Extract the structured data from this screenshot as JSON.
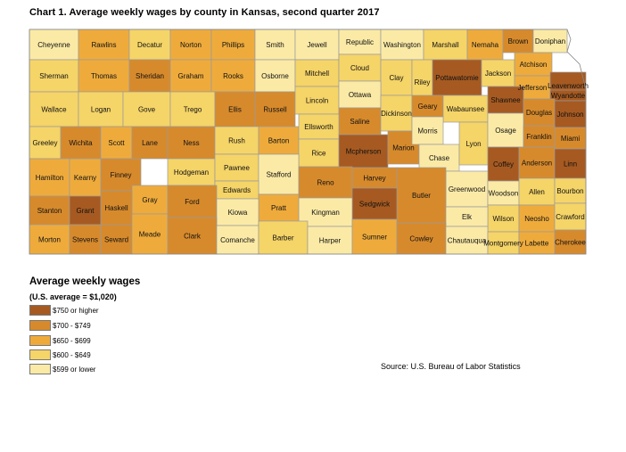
{
  "title": "Chart 1. Average weekly wages by county in Kansas, second quarter 2017",
  "legend": {
    "title": "Average weekly wages",
    "subtitle": "(U.S. average = $1,020)",
    "items": [
      {
        "label": "$750 or higher",
        "color": "#a65a21"
      },
      {
        "label": "$700 - $749",
        "color": "#d78a2c"
      },
      {
        "label": "$650 - $699",
        "color": "#eeab3c"
      },
      {
        "label": "$600 - $649",
        "color": "#f5d468"
      },
      {
        "label": "$599 or lower",
        "color": "#fbeaa6"
      }
    ]
  },
  "source": "Source: U.S. Bureau of Labor Statistics",
  "counties": [
    {
      "name": "Cheyenne",
      "cls": 4
    },
    {
      "name": "Rawlins",
      "cls": 2
    },
    {
      "name": "Decatur",
      "cls": 3
    },
    {
      "name": "Norton",
      "cls": 2
    },
    {
      "name": "Phillips",
      "cls": 2
    },
    {
      "name": "Smith",
      "cls": 4
    },
    {
      "name": "Jewell",
      "cls": 4
    },
    {
      "name": "Republic",
      "cls": 4
    },
    {
      "name": "Washington",
      "cls": 4
    },
    {
      "name": "Marshall",
      "cls": 3
    },
    {
      "name": "Nemaha",
      "cls": 2
    },
    {
      "name": "Brown",
      "cls": 1
    },
    {
      "name": "Doniphan",
      "cls": 4
    },
    {
      "name": "Sherman",
      "cls": 3
    },
    {
      "name": "Thomas",
      "cls": 2
    },
    {
      "name": "Sheridan",
      "cls": 1
    },
    {
      "name": "Graham",
      "cls": 2
    },
    {
      "name": "Rooks",
      "cls": 2
    },
    {
      "name": "Osborne",
      "cls": 4
    },
    {
      "name": "Mitchell",
      "cls": 3
    },
    {
      "name": "Cloud",
      "cls": 3
    },
    {
      "name": "Clay",
      "cls": 3
    },
    {
      "name": "Riley",
      "cls": 3
    },
    {
      "name": "Pottawatomie",
      "cls": 0
    },
    {
      "name": "Jackson",
      "cls": 3
    },
    {
      "name": "Atchison",
      "cls": 2
    },
    {
      "name": "Jefferson",
      "cls": 2
    },
    {
      "name": "Leavenworth",
      "cls": 0
    },
    {
      "name": "Wyandotte",
      "cls": 0
    },
    {
      "name": "Wallace",
      "cls": 3
    },
    {
      "name": "Logan",
      "cls": 3
    },
    {
      "name": "Gove",
      "cls": 3
    },
    {
      "name": "Trego",
      "cls": 3
    },
    {
      "name": "Ellis",
      "cls": 1
    },
    {
      "name": "Russell",
      "cls": 1
    },
    {
      "name": "Lincoln",
      "cls": 3
    },
    {
      "name": "Ottawa",
      "cls": 4
    },
    {
      "name": "Saline",
      "cls": 1
    },
    {
      "name": "Dickinson",
      "cls": 3
    },
    {
      "name": "Geary",
      "cls": 1
    },
    {
      "name": "Wabaunsee",
      "cls": 3
    },
    {
      "name": "Shawnee",
      "cls": 0
    },
    {
      "name": "Douglas",
      "cls": 1
    },
    {
      "name": "Johnson",
      "cls": 0
    },
    {
      "name": "Greeley",
      "cls": 3
    },
    {
      "name": "Wichita",
      "cls": 1
    },
    {
      "name": "Scott",
      "cls": 2
    },
    {
      "name": "Lane",
      "cls": 1
    },
    {
      "name": "Ness",
      "cls": 1
    },
    {
      "name": "Rush",
      "cls": 3
    },
    {
      "name": "Barton",
      "cls": 2
    },
    {
      "name": "Ellsworth",
      "cls": 3
    },
    {
      "name": "Rice",
      "cls": 3
    },
    {
      "name": "Mcpherson",
      "cls": 0
    },
    {
      "name": "Marion",
      "cls": 1
    },
    {
      "name": "Morris",
      "cls": 4
    },
    {
      "name": "Chase",
      "cls": 4
    },
    {
      "name": "Lyon",
      "cls": 3
    },
    {
      "name": "Osage",
      "cls": 4
    },
    {
      "name": "Franklin",
      "cls": 1
    },
    {
      "name": "Miami",
      "cls": 1
    },
    {
      "name": "Hamilton",
      "cls": 2
    },
    {
      "name": "Kearny",
      "cls": 2
    },
    {
      "name": "Finney",
      "cls": 1
    },
    {
      "name": "Hodgeman",
      "cls": 3
    },
    {
      "name": "Pawnee",
      "cls": 3
    },
    {
      "name": "Stafford",
      "cls": 4
    },
    {
      "name": "Edwards",
      "cls": 3
    },
    {
      "name": "Reno",
      "cls": 1
    },
    {
      "name": "Harvey",
      "cls": 1
    },
    {
      "name": "Coffey",
      "cls": 0
    },
    {
      "name": "Anderson",
      "cls": 1
    },
    {
      "name": "Linn",
      "cls": 0
    },
    {
      "name": "Greenwood",
      "cls": 4
    },
    {
      "name": "Woodson",
      "cls": 4
    },
    {
      "name": "Allen",
      "cls": 3
    },
    {
      "name": "Bourbon",
      "cls": 3
    },
    {
      "name": "Gray",
      "cls": 2
    },
    {
      "name": "Ford",
      "cls": 1
    },
    {
      "name": "Butler",
      "cls": 1
    },
    {
      "name": "Sedgwick",
      "cls": 0
    },
    {
      "name": "Kingman",
      "cls": 4
    },
    {
      "name": "Pratt",
      "cls": 2
    },
    {
      "name": "Kiowa",
      "cls": 4
    },
    {
      "name": "Stanton",
      "cls": 1
    },
    {
      "name": "Grant",
      "cls": 0
    },
    {
      "name": "Haskell",
      "cls": 1
    },
    {
      "name": "Wilson",
      "cls": 3
    },
    {
      "name": "Neosho",
      "cls": 2
    },
    {
      "name": "Crawford",
      "cls": 3
    },
    {
      "name": "Elk",
      "cls": 4
    },
    {
      "name": "Morton",
      "cls": 2
    },
    {
      "name": "Stevens",
      "cls": 1
    },
    {
      "name": "Seward",
      "cls": 1
    },
    {
      "name": "Meade",
      "cls": 2
    },
    {
      "name": "Clark",
      "cls": 1
    },
    {
      "name": "Comanche",
      "cls": 4
    },
    {
      "name": "Barber",
      "cls": 3
    },
    {
      "name": "Harper",
      "cls": 4
    },
    {
      "name": "Sumner",
      "cls": 2
    },
    {
      "name": "Cowley",
      "cls": 1
    },
    {
      "name": "Chautauqua",
      "cls": 4
    },
    {
      "name": "Montgomery",
      "cls": 3
    },
    {
      "name": "Labette",
      "cls": 2
    },
    {
      "name": "Cherokee",
      "cls": 1
    }
  ]
}
